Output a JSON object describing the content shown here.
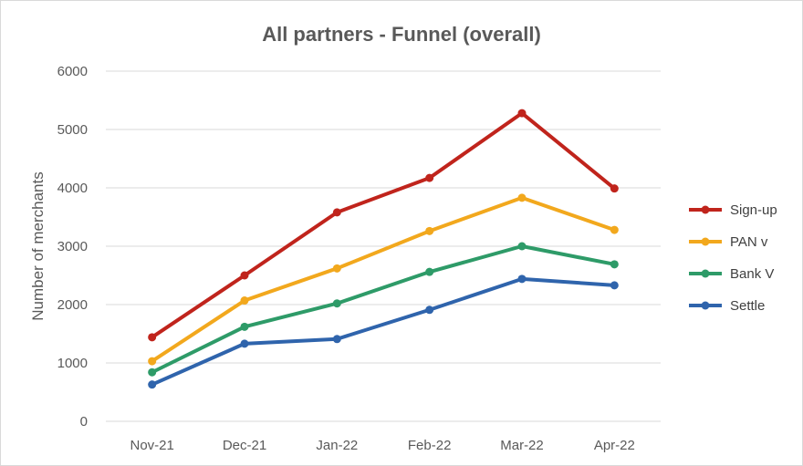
{
  "chart_data": {
    "type": "line",
    "title": "All partners - Funnel (overall)",
    "xlabel": "",
    "ylabel": "Number of merchants",
    "categories": [
      "Nov-21",
      "Dec-21",
      "Jan-22",
      "Feb-22",
      "Mar-22",
      "Apr-22"
    ],
    "ylim": [
      0,
      6000
    ],
    "yticks": [
      0,
      1000,
      2000,
      3000,
      4000,
      5000,
      6000
    ],
    "grid": true,
    "legend_position": "right",
    "series": [
      {
        "name": "Sign-up",
        "color": "#c0241c",
        "values": [
          1440,
          2500,
          3580,
          4170,
          5280,
          3990
        ]
      },
      {
        "name": "PAN v",
        "color": "#f2a81d",
        "values": [
          1030,
          2070,
          2620,
          3260,
          3830,
          3280
        ]
      },
      {
        "name": "Bank V",
        "color": "#2e9b68",
        "values": [
          840,
          1620,
          2020,
          2560,
          3000,
          2690
        ]
      },
      {
        "name": "Settle",
        "color": "#2f64ac",
        "values": [
          630,
          1330,
          1410,
          1910,
          2440,
          2330
        ]
      }
    ]
  }
}
